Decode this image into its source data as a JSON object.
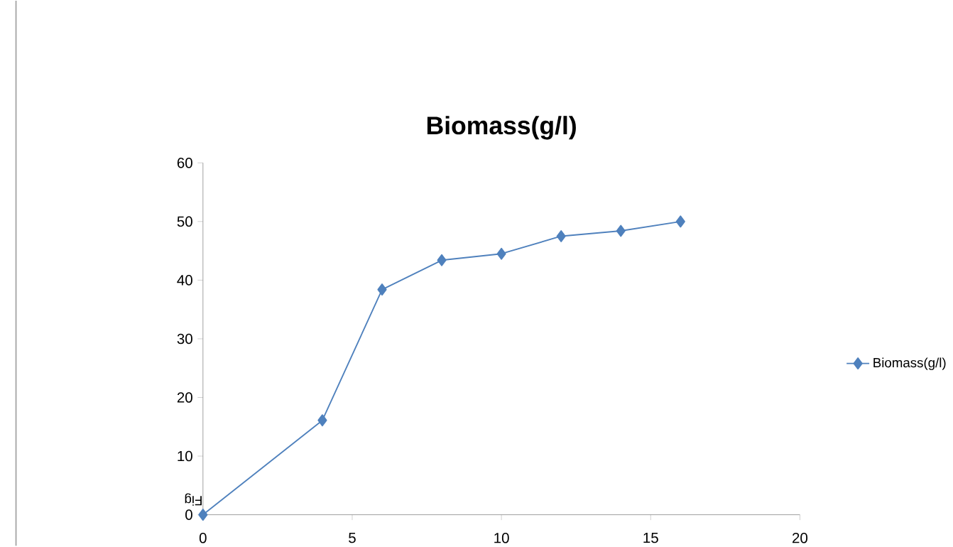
{
  "chart_data": {
    "type": "line",
    "title": "Biomass(g/l)",
    "x": [
      0,
      4,
      6,
      8,
      10,
      12,
      14,
      16
    ],
    "series": [
      {
        "name": "Biomass(g/l)",
        "color": "#4f81bd",
        "values": [
          0,
          16.1,
          38.4,
          43.4,
          44.5,
          47.5,
          48.4,
          50
        ]
      }
    ],
    "xlim": [
      0,
      20
    ],
    "xticks": [
      0,
      5,
      10,
      15,
      20
    ],
    "ylim": [
      0,
      60
    ],
    "yticks": [
      0,
      10,
      20,
      30,
      40,
      50,
      60
    ],
    "marker": "diamond",
    "line_style": "solid",
    "legend": "right",
    "grid": false,
    "annotations": [
      "Fig"
    ]
  }
}
